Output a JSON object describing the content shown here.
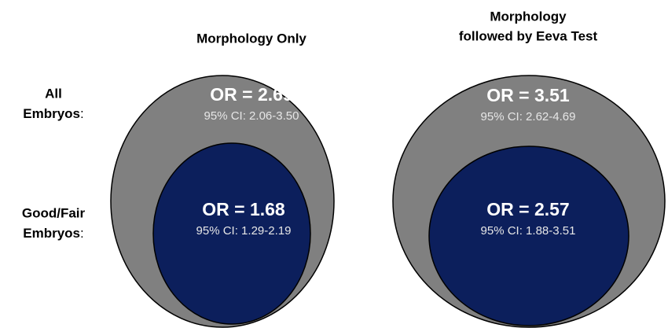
{
  "columns": [
    {
      "title_lines": [
        "Morphology  Only"
      ]
    },
    {
      "title_lines": [
        "Morphology",
        "followed  by Eeva Test"
      ]
    }
  ],
  "rows": [
    {
      "label_lines": [
        "All",
        "Embryos"
      ],
      "suffix": ":"
    },
    {
      "label_lines": [
        "Good/Fair",
        "Embryos"
      ],
      "suffix": ":"
    }
  ],
  "cells": [
    [
      {
        "or": "OR = 2.69",
        "ci": "95% CI: 2.06-3.50"
      },
      {
        "or": "OR = 3.51",
        "ci": "95% CI: 2.62-4.69"
      }
    ],
    [
      {
        "or": "OR = 1.68",
        "ci": "95% CI: 1.29-2.19"
      },
      {
        "or": "OR = 2.57",
        "ci": "95% CI: 1.88-3.51"
      }
    ]
  ]
}
